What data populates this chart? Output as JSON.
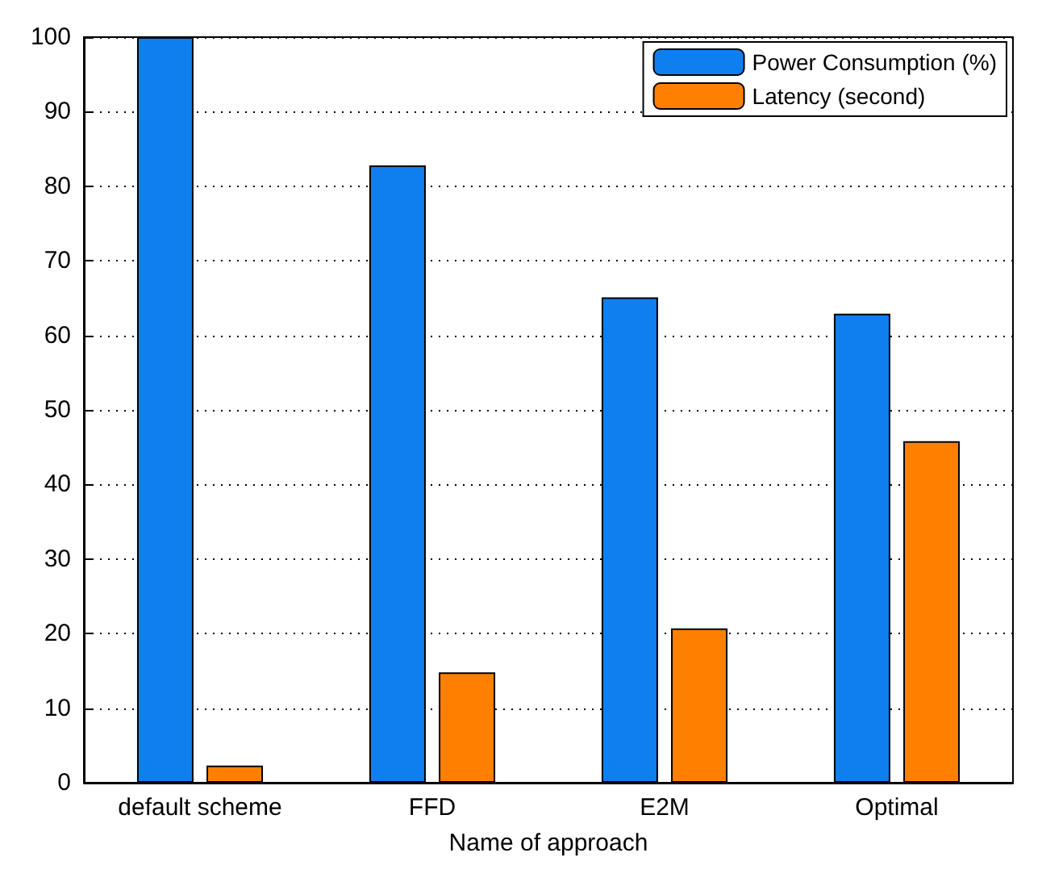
{
  "chart_data": {
    "type": "bar",
    "xlabel": "Name of approach",
    "categories": [
      "default scheme",
      "FFD",
      "E2M",
      "Optimal"
    ],
    "series": [
      {
        "name": "Power Consumption (%)",
        "color": "#0f7ff0",
        "values": [
          100,
          82.8,
          65.1,
          62.9
        ]
      },
      {
        "name": "Latency (second)",
        "color": "#ff8000",
        "values": [
          2.3,
          14.8,
          20.7,
          45.8
        ]
      }
    ],
    "ylim": [
      0,
      100
    ],
    "yticks": [
      0,
      10,
      20,
      30,
      40,
      50,
      60,
      70,
      80,
      90,
      100
    ],
    "grid": "y",
    "legend": "top right"
  }
}
